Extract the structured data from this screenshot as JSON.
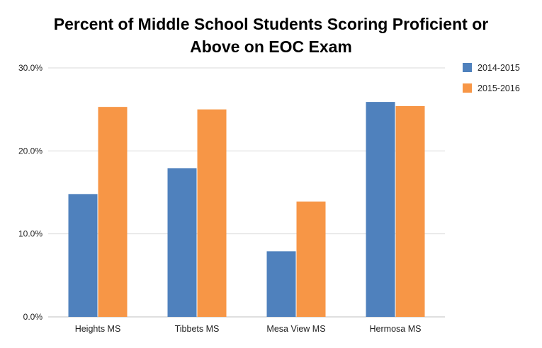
{
  "chart_data": {
    "type": "bar",
    "title_line1": "Percent of Middle School Students Scoring Proficient or",
    "title_line2": "Above on EOC Exam",
    "categories": [
      "Heights MS",
      "Tibbets MS",
      "Mesa View MS",
      "Hermosa MS"
    ],
    "series": [
      {
        "name": "2014-2015",
        "color": "#4f81bd",
        "values": [
          14.8,
          17.9,
          7.9,
          25.9
        ]
      },
      {
        "name": "2015-2016",
        "color": "#f79646",
        "values": [
          25.3,
          25.0,
          13.9,
          25.4
        ]
      }
    ],
    "ylim": [
      0,
      30
    ],
    "yticks": [
      0,
      10,
      20,
      30
    ],
    "ytick_labels": [
      "0.0%",
      "10.0%",
      "20.0%",
      "30.0%"
    ],
    "grid": true,
    "legend_position": "right"
  }
}
